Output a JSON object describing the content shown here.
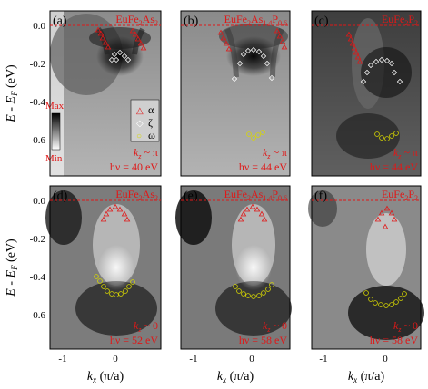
{
  "panels": [
    {
      "label": "(a)",
      "compound_base": "EuFe",
      "compound_sub1": "2",
      "compound_mid": "As",
      "compound_sub2": "2",
      "compound_tail": "",
      "compound_sub3": "",
      "kz": "k",
      "kz_sub": "z",
      "kz_val": " ~ π",
      "hv": "hν = 40 eV"
    },
    {
      "label": "(b)",
      "compound_base": "EuFe",
      "compound_sub1": "2",
      "compound_mid": "As",
      "compound_sub2": "1.4",
      "compound_tail": "P",
      "compound_sub3": "0.6",
      "kz": "k",
      "kz_sub": "z",
      "kz_val": " ~ π",
      "hv": "hν = 44 eV"
    },
    {
      "label": "(c)",
      "compound_base": "EuFe",
      "compound_sub1": "2",
      "compound_mid": "P",
      "compound_sub2": "2",
      "compound_tail": "",
      "compound_sub3": "",
      "kz": "k",
      "kz_sub": "z",
      "kz_val": " ~ π",
      "hv": "hν = 44 eV"
    },
    {
      "label": "(d)",
      "compound_base": "EuFe",
      "compound_sub1": "2",
      "compound_mid": "As",
      "compound_sub2": "2",
      "compound_tail": "",
      "compound_sub3": "",
      "kz": "k",
      "kz_sub": "z",
      "kz_val": " ~ 0",
      "hv": "hν = 52 eV"
    },
    {
      "label": "(e)",
      "compound_base": "EuFe",
      "compound_sub1": "2",
      "compound_mid": "As",
      "compound_sub2": "1.4",
      "compound_tail": "P",
      "compound_sub3": "0.6",
      "kz": "k",
      "kz_sub": "z",
      "kz_val": " ~ 0",
      "hv": "hν = 58 eV"
    },
    {
      "label": "(f)",
      "compound_base": "EuFe",
      "compound_sub1": "2",
      "compound_mid": "P",
      "compound_sub2": "2",
      "compound_tail": "",
      "compound_sub3": "",
      "kz": "k",
      "kz_sub": "z",
      "kz_val": " ~ 0",
      "hv": "hν = 58 eV"
    }
  ],
  "axes": {
    "y_title_E": "E",
    "y_title_minus": " - ",
    "y_title_EF": "E",
    "y_title_EF_sub": "F",
    "y_title_unit": " (eV)",
    "y_ticks": [
      "0.0",
      "-0.2",
      "-0.4",
      "-0.6"
    ],
    "x_ticks": [
      "-1",
      "0"
    ],
    "x_title_k": "k",
    "x_title_sub": "x",
    "x_title_unit": " (π/a)"
  },
  "colorbar": {
    "max": "Max",
    "min": "Min"
  },
  "legend": [
    {
      "symbol": "△",
      "name": "α",
      "color": "#e01818"
    },
    {
      "symbol": "◇",
      "name": "ζ",
      "color": "#ffffff"
    },
    {
      "symbol": "○",
      "name": "ω",
      "color": "#d8d800"
    }
  ],
  "colors": {
    "fermi_line": "#e01818",
    "alpha": "#e01818",
    "zeta": "#ffffff",
    "omega": "#d8d800"
  }
}
